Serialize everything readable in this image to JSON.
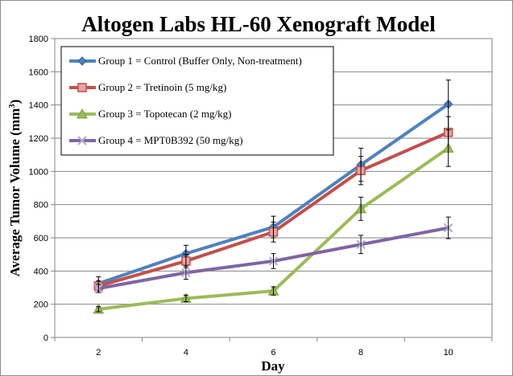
{
  "chart_data": {
    "type": "line",
    "title": "Altogen Labs HL-60 Xenograft Model",
    "xlabel": "Day",
    "ylabel": "Average Tumor Volume (mm",
    "ylabel_sup": "3",
    "ylabel_end": ")",
    "x": [
      2,
      4,
      6,
      8,
      10
    ],
    "x_ticks": [
      "2",
      "4",
      "6",
      "8",
      "10"
    ],
    "y_ticks": [
      "0",
      "200",
      "400",
      "600",
      "800",
      "1000",
      "1200",
      "1400",
      "1600",
      "1800"
    ],
    "ylim": [
      0,
      1800
    ],
    "grid": true,
    "legend_position": "top-left",
    "series": [
      {
        "name": "Group 1 = Control (Buffer Only, Non-treatment)",
        "values": [
          325,
          505,
          665,
          1040,
          1405
        ],
        "errors": [
          40,
          50,
          65,
          100,
          145
        ],
        "color": "#4f81bd",
        "marker": "diamond"
      },
      {
        "name": "Group 2 = Tretinoin (5 mg/kg)",
        "values": [
          310,
          460,
          635,
          1005,
          1235
        ],
        "errors": [
          30,
          40,
          60,
          85,
          95
        ],
        "color": "#c0504d",
        "marker": "square"
      },
      {
        "name": "Group 3 = Topotecan (2 mg/kg)",
        "values": [
          170,
          235,
          280,
          775,
          1140
        ],
        "errors": [
          15,
          20,
          25,
          70,
          110
        ],
        "color": "#9bbb59",
        "marker": "triangle"
      },
      {
        "name": "Group 4 = MPT0B392 (50 mg/kg)",
        "values": [
          295,
          390,
          460,
          560,
          660
        ],
        "errors": [
          25,
          40,
          45,
          55,
          65
        ],
        "color": "#8064a2",
        "marker": "x"
      }
    ]
  }
}
